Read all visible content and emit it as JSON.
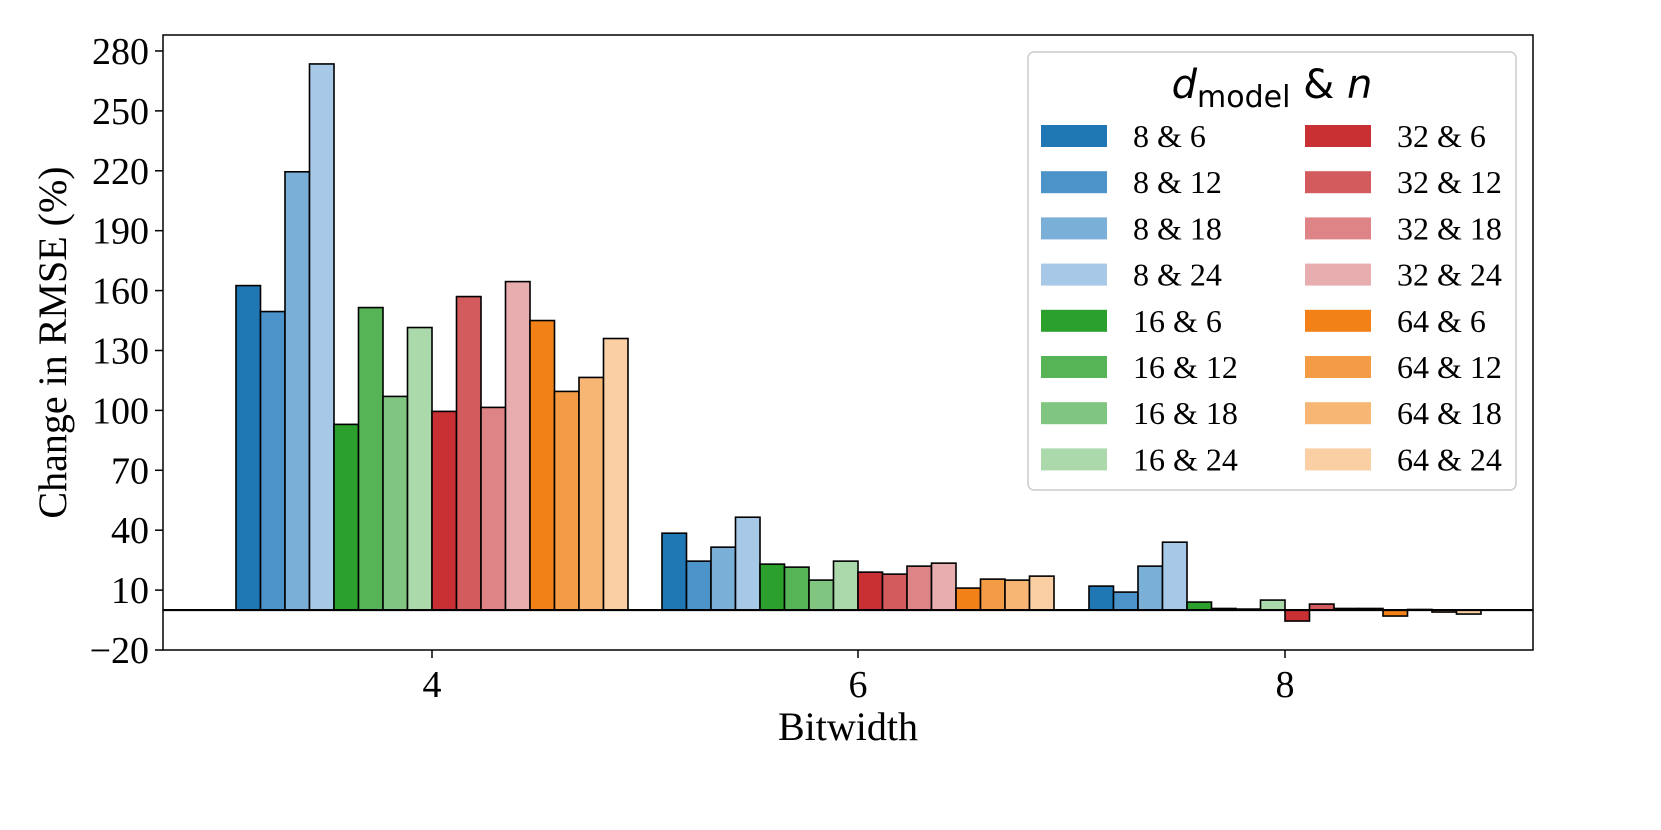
{
  "chart_data": {
    "type": "bar",
    "title": "",
    "xlabel": "Bitwidth",
    "ylabel": "Change in RMSE (%)",
    "categories": [
      "4",
      "6",
      "8"
    ],
    "ylim": [
      -20,
      288
    ],
    "yticks": [
      -20,
      10,
      40,
      70,
      100,
      130,
      160,
      190,
      220,
      250,
      280
    ],
    "ytick_labels": [
      "−20",
      "10",
      "40",
      "70",
      "100",
      "130",
      "160",
      "190",
      "220",
      "250",
      "280"
    ],
    "grid": false,
    "legend": {
      "placement": "top-right",
      "title_main": "d",
      "title_sub": "model",
      "title_rest": " & ",
      "title_var": "n"
    },
    "series": [
      {
        "name": "8 & 6",
        "color": "#1f77b4",
        "values": [
          162.5,
          38.5,
          12.0
        ]
      },
      {
        "name": "8 & 12",
        "color": "#4c93c9",
        "values": [
          149.5,
          24.5,
          9.0
        ]
      },
      {
        "name": "8 & 18",
        "color": "#7aafd8",
        "values": [
          219.5,
          31.5,
          22.0
        ]
      },
      {
        "name": "8 & 24",
        "color": "#a7c8e6",
        "values": [
          273.5,
          46.5,
          34.0
        ]
      },
      {
        "name": "16 & 6",
        "color": "#2ca02c",
        "values": [
          93.0,
          23.0,
          4.0
        ]
      },
      {
        "name": "16 & 12",
        "color": "#56b356",
        "values": [
          151.5,
          21.5,
          0.8
        ]
      },
      {
        "name": "16 & 18",
        "color": "#80c680",
        "values": [
          107.0,
          15.0,
          0.5
        ]
      },
      {
        "name": "16 & 24",
        "color": "#abd9ab",
        "values": [
          141.5,
          24.5,
          5.0
        ]
      },
      {
        "name": "32 & 6",
        "color": "#c93034",
        "values": [
          99.5,
          19.0,
          -5.5
        ]
      },
      {
        "name": "32 & 12",
        "color": "#d35a5d",
        "values": [
          157.0,
          18.0,
          3.0
        ]
      },
      {
        "name": "32 & 18",
        "color": "#de8486",
        "values": [
          101.5,
          22.0,
          0.8
        ]
      },
      {
        "name": "32 & 24",
        "color": "#e8adaf",
        "values": [
          164.5,
          23.5,
          0.8
        ]
      },
      {
        "name": "64 & 6",
        "color": "#f28218",
        "values": [
          145.0,
          11.0,
          -3.0
        ]
      },
      {
        "name": "64 & 12",
        "color": "#f49c45",
        "values": [
          109.5,
          15.5,
          0.3
        ]
      },
      {
        "name": "64 & 18",
        "color": "#f7b674",
        "values": [
          116.5,
          15.0,
          -1.0
        ]
      },
      {
        "name": "64 & 24",
        "color": "#f9cfa3",
        "values": [
          136.0,
          17.0,
          -2.0
        ]
      }
    ]
  }
}
